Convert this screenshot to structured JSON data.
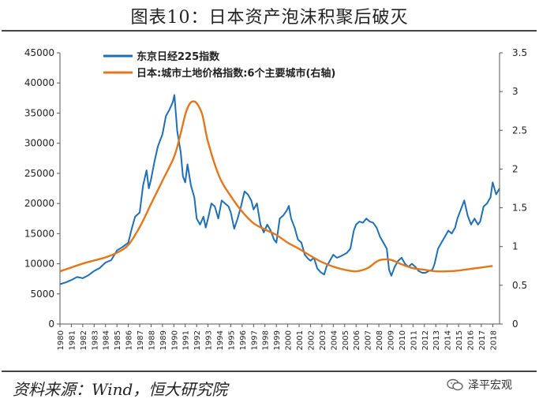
{
  "header": {
    "title": "图表10：日本资产泡沫积聚后破灭"
  },
  "footer": {
    "source": "资料来源：Wind，恒大研究院",
    "brand": "泽平宏观"
  },
  "colors": {
    "nikkei": "#1F6FB4",
    "land": "#E4761C",
    "axis": "#555555",
    "text": "#222222"
  },
  "chart_data": {
    "type": "line",
    "title": "图表10：日本资产泡沫积聚后破灭",
    "xlabel": "",
    "ylabel": "",
    "ylim": [
      0,
      45000
    ],
    "y2lim": [
      0,
      3.5
    ],
    "xlim": [
      1980,
      2018.6
    ],
    "y_ticks": [
      "0",
      "5000",
      "10000",
      "15000",
      "20000",
      "25000",
      "30000",
      "35000",
      "40000",
      "45000"
    ],
    "y2_ticks": [
      "0",
      "0.5",
      "1",
      "1.5",
      "2",
      "2.5",
      "3",
      "3.5"
    ],
    "x_ticks": [
      "1980",
      "1981",
      "1982",
      "1983",
      "1984",
      "1985",
      "1986",
      "1987",
      "1988",
      "1989",
      "1990",
      "1991",
      "1992",
      "1993",
      "1994",
      "1995",
      "1996",
      "1997",
      "1998",
      "1999",
      "2000",
      "2001",
      "2002",
      "2003",
      "2004",
      "2005",
      "2006",
      "2007",
      "2008",
      "2009",
      "2010",
      "2011",
      "2012",
      "2013",
      "2014",
      "2015",
      "2016",
      "2017",
      "2018"
    ],
    "legend_position": "top-left",
    "series": [
      {
        "name": "东京日经225指数",
        "axis": "left",
        "x": [
          1980.0,
          1980.5,
          1981.0,
          1981.5,
          1982.0,
          1982.5,
          1983.0,
          1983.5,
          1984.0,
          1984.5,
          1985.0,
          1985.5,
          1986.0,
          1986.3,
          1986.6,
          1987.0,
          1987.3,
          1987.6,
          1987.8,
          1988.0,
          1988.3,
          1988.6,
          1989.0,
          1989.3,
          1989.6,
          1989.9,
          1990.05,
          1990.3,
          1990.6,
          1990.8,
          1991.0,
          1991.2,
          1991.5,
          1991.8,
          1992.0,
          1992.3,
          1992.6,
          1992.8,
          1993.0,
          1993.3,
          1993.6,
          1993.9,
          1994.2,
          1994.5,
          1994.8,
          1995.0,
          1995.3,
          1995.6,
          1995.9,
          1996.2,
          1996.5,
          1996.8,
          1997.0,
          1997.3,
          1997.6,
          1997.9,
          1998.2,
          1998.5,
          1998.8,
          1999.0,
          1999.3,
          1999.6,
          1999.9,
          2000.1,
          2000.3,
          2000.6,
          2000.9,
          2001.2,
          2001.5,
          2001.8,
          2002.0,
          2002.3,
          2002.6,
          2002.9,
          2003.2,
          2003.4,
          2003.7,
          2004.0,
          2004.3,
          2004.6,
          2004.9,
          2005.2,
          2005.5,
          2005.8,
          2006.0,
          2006.3,
          2006.6,
          2006.9,
          2007.2,
          2007.5,
          2007.8,
          2008.1,
          2008.4,
          2008.7,
          2008.9,
          2009.1,
          2009.4,
          2009.7,
          2010.0,
          2010.3,
          2010.6,
          2010.9,
          2011.2,
          2011.5,
          2011.8,
          2012.1,
          2012.4,
          2012.7,
          2012.9,
          2013.2,
          2013.5,
          2013.8,
          2014.1,
          2014.4,
          2014.7,
          2014.9,
          2015.2,
          2015.5,
          2015.8,
          2016.1,
          2016.4,
          2016.7,
          2016.9,
          2017.2,
          2017.5,
          2017.8,
          2018.0,
          2018.3,
          2018.6
        ],
        "values": [
          6600,
          6900,
          7300,
          7800,
          7600,
          8100,
          8800,
          9300,
          10200,
          10600,
          12200,
          12800,
          13500,
          15800,
          17800,
          18500,
          23000,
          25500,
          22500,
          24000,
          27000,
          29500,
          31500,
          34500,
          35500,
          36800,
          38000,
          32000,
          28500,
          24500,
          23500,
          26500,
          23000,
          21000,
          17500,
          16500,
          17800,
          16000,
          17500,
          20000,
          19500,
          17500,
          20500,
          20000,
          19500,
          18500,
          15800,
          17500,
          19500,
          22000,
          21500,
          20500,
          19000,
          20000,
          16500,
          15200,
          16500,
          15500,
          14000,
          13500,
          17500,
          18000,
          18800,
          19600,
          17500,
          16000,
          14000,
          13500,
          11500,
          10800,
          10500,
          11000,
          9200,
          8600,
          8200,
          9500,
          10500,
          11500,
          11000,
          11200,
          11500,
          11800,
          12500,
          15500,
          16500,
          17000,
          16800,
          17500,
          17000,
          16800,
          16000,
          14500,
          13500,
          12500,
          9000,
          8000,
          9500,
          10500,
          11000,
          10000,
          9500,
          10000,
          9500,
          8800,
          8500,
          8500,
          8800,
          9000,
          10000,
          12500,
          13500,
          14500,
          15500,
          15000,
          16000,
          17500,
          19000,
          20500,
          18000,
          16500,
          17500,
          16500,
          17000,
          19500,
          20000,
          21000,
          23500,
          21500,
          22500
        ],
        "color": "#1F6FB4"
      },
      {
        "name": "日本:城市土地价格指数:6个主要城市(右轴)",
        "axis": "right",
        "x": [
          1980,
          1981,
          1982,
          1983,
          1984,
          1985,
          1986,
          1987,
          1988,
          1989,
          1990,
          1990.5,
          1991,
          1991.3,
          1991.6,
          1992,
          1992.5,
          1993,
          1994,
          1995,
          1996,
          1997,
          1998,
          1999,
          2000,
          2001,
          2002,
          2003,
          2004,
          2005,
          2006,
          2007,
          2008,
          2009,
          2010,
          2011,
          2012,
          2013,
          2014,
          2015,
          2016,
          2017,
          2018
        ],
        "values": [
          0.68,
          0.73,
          0.78,
          0.82,
          0.86,
          0.92,
          1.02,
          1.25,
          1.55,
          1.85,
          2.15,
          2.4,
          2.7,
          2.82,
          2.87,
          2.85,
          2.7,
          2.35,
          1.9,
          1.65,
          1.45,
          1.3,
          1.22,
          1.15,
          1.05,
          0.97,
          0.88,
          0.8,
          0.74,
          0.7,
          0.68,
          0.72,
          0.82,
          0.83,
          0.77,
          0.72,
          0.7,
          0.68,
          0.68,
          0.69,
          0.71,
          0.73,
          0.75
        ],
        "color": "#E4761C"
      }
    ]
  }
}
